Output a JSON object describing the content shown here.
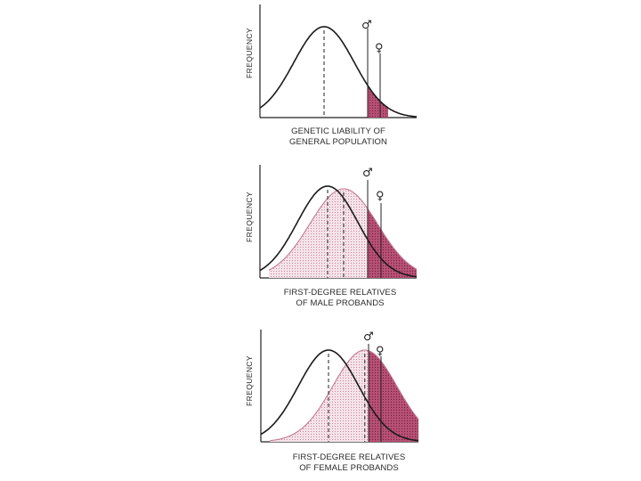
{
  "symbols": {
    "male": "♂",
    "female": "♀"
  },
  "colors": {
    "shade": "#b0476a",
    "shade_light": "#f0d3dc",
    "curve": "#1a1a1a",
    "relative_curve": "#c47a93"
  },
  "panels": [
    {
      "y_label": "FREQUENCY",
      "caption_lines": [
        "GENETIC LIABILITY OF",
        "GENERAL POPULATION"
      ],
      "relatives_shift": 0
    },
    {
      "y_label": "FREQUENCY",
      "caption_lines": [
        "FIRST-DEGREE RELATIVES",
        "OF MALE PROBANDS"
      ],
      "relatives_shift": 0.45
    },
    {
      "y_label": "FREQUENCY",
      "caption_lines": [
        "FIRST-DEGREE RELATIVES",
        "OF FEMALE PROBANDS"
      ],
      "relatives_shift": 0.8
    }
  ]
}
